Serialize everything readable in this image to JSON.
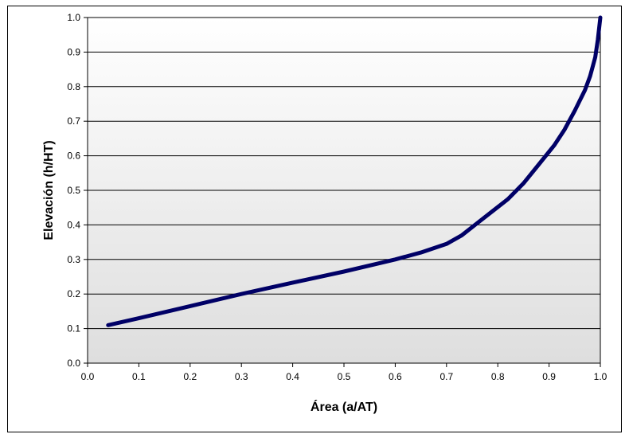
{
  "chart_data": {
    "type": "line",
    "title": "",
    "xlabel": "Área (a/AT)",
    "ylabel": "Elevación (h/HT)",
    "xlim": [
      0.0,
      1.0
    ],
    "ylim": [
      0.0,
      1.0
    ],
    "x_ticks": [
      "0.0",
      "0.1",
      "0.2",
      "0.3",
      "0.4",
      "0.5",
      "0.6",
      "0.7",
      "0.8",
      "0.9",
      "1.0"
    ],
    "y_ticks": [
      "0.0",
      "0.1",
      "0.2",
      "0.3",
      "0.4",
      "0.5",
      "0.6",
      "0.7",
      "0.8",
      "0.9",
      "1.0"
    ],
    "grid": "horizontal",
    "legend": "none",
    "series": [
      {
        "color": "#000066",
        "points": [
          [
            0.04,
            0.11
          ],
          [
            0.1,
            0.13
          ],
          [
            0.2,
            0.165
          ],
          [
            0.3,
            0.2
          ],
          [
            0.4,
            0.233
          ],
          [
            0.5,
            0.265
          ],
          [
            0.6,
            0.3
          ],
          [
            0.65,
            0.32
          ],
          [
            0.7,
            0.345
          ],
          [
            0.73,
            0.37
          ],
          [
            0.76,
            0.405
          ],
          [
            0.79,
            0.44
          ],
          [
            0.82,
            0.475
          ],
          [
            0.85,
            0.52
          ],
          [
            0.88,
            0.575
          ],
          [
            0.91,
            0.63
          ],
          [
            0.93,
            0.675
          ],
          [
            0.95,
            0.73
          ],
          [
            0.97,
            0.79
          ],
          [
            0.98,
            0.83
          ],
          [
            0.99,
            0.885
          ],
          [
            0.995,
            0.935
          ],
          [
            1.0,
            1.0
          ]
        ]
      }
    ]
  },
  "colors": {
    "plot_top": "#ffffff",
    "plot_bottom": "#dedede",
    "grid": "#000000",
    "line": "#000066"
  }
}
